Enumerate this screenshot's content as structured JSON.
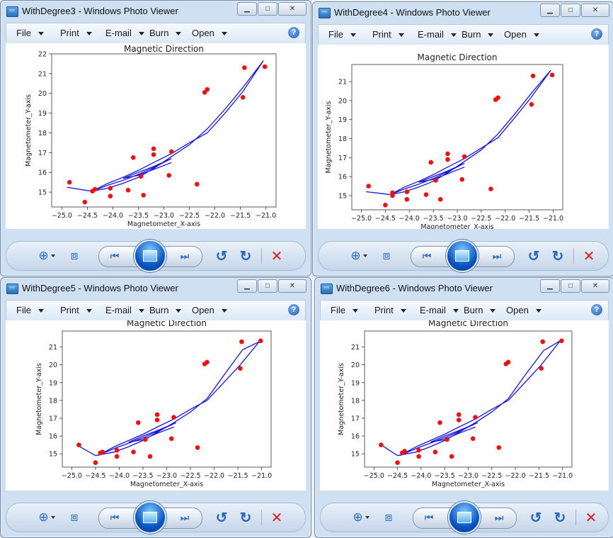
{
  "menu": {
    "file": "File",
    "print": "Print",
    "email": "E-mail",
    "burn": "Burn",
    "open": "Open"
  },
  "icons": {
    "app": "photo-viewer-icon",
    "help": "help-icon",
    "zoom": "zoom-icon",
    "fit": "actual-size-icon",
    "prev": "previous-icon",
    "slideshow": "slideshow-icon",
    "next": "next-icon",
    "rotate_ccw": "rotate-counterclockwise-icon",
    "rotate_cw": "rotate-clockwise-icon",
    "delete": "delete-icon"
  },
  "windows": [
    {
      "title": "WithDegree3 - Windows Photo Viewer",
      "chart_data": {
        "type": "scatter",
        "title": "Magnetic Direction",
        "xlabel": "Magnetometer_X-axis",
        "ylabel": "Magnetometer_Y-axis",
        "xlim": [
          -25.2,
          -20.8
        ],
        "ylim": [
          14.25,
          22
        ],
        "xticks": [
          -25.0,
          -24.5,
          -24.0,
          -23.5,
          -23.0,
          -22.5,
          -22.0,
          -21.5,
          -21.0
        ],
        "xtick_labels": [
          "−25.0",
          "−24.5",
          "−24.0",
          "−23.5",
          "−23.0",
          "−22.5",
          "−22.0",
          "−21.5",
          "−21.0"
        ],
        "yticks": [
          15,
          16,
          17,
          18,
          19,
          20,
          21,
          22
        ],
        "ytick_labels": [
          "15",
          "16",
          "17",
          "18",
          "19",
          "20",
          "21",
          "22"
        ],
        "points_x": [
          -24.85,
          -24.55,
          -24.4,
          -24.35,
          -24.05,
          -24.05,
          -23.7,
          -23.6,
          -23.45,
          -23.4,
          -23.2,
          -23.2,
          -22.9,
          -22.85,
          -22.35,
          -22.2,
          -22.15,
          -21.45,
          -21.42,
          -21.02
        ],
        "points_y": [
          15.5,
          14.5,
          15.05,
          15.15,
          14.8,
          15.2,
          15.1,
          16.75,
          15.8,
          14.85,
          16.9,
          17.2,
          15.85,
          17.05,
          15.4,
          20.05,
          20.2,
          19.8,
          21.3,
          21.35
        ],
        "fit_x": [
          -24.9,
          -24.55,
          -24.4,
          -24.1,
          -23.8,
          -23.5,
          -23.2,
          -22.85,
          -22.5,
          -22.15,
          -21.8,
          -21.45,
          -21.05,
          -21.45,
          -21.8,
          -22.15,
          -22.5,
          -22.85,
          -23.2,
          -23.5,
          -23.8,
          -24.1,
          -24.4,
          -24.1,
          -23.8,
          -23.5,
          -23.2,
          -22.85,
          -23.2,
          -23.5,
          -23.8,
          -23.5,
          -23.2,
          -22.85
        ],
        "fit_y": [
          15.25,
          15.1,
          15.05,
          15.2,
          15.45,
          15.75,
          16.2,
          16.8,
          17.4,
          18.2,
          19.2,
          20.3,
          21.65,
          20.1,
          19.0,
          18.0,
          17.5,
          16.95,
          16.5,
          16.1,
          15.75,
          15.45,
          15.05,
          15.35,
          15.6,
          15.9,
          16.25,
          16.7,
          16.3,
          16.0,
          15.7,
          15.85,
          16.15,
          16.5
        ]
      },
      "toolbar": ""
    },
    {
      "title": "WithDegree4 - Windows Photo Viewer",
      "chart_data": {
        "type": "scatter",
        "title": "Magnetic Direction",
        "xlabel": "Magnetometer_X-axis",
        "ylabel": "Magnetometer_Y-axis",
        "xlim": [
          -25.2,
          -20.8
        ],
        "ylim": [
          14.25,
          21.9
        ],
        "xticks": [
          -25.0,
          -24.5,
          -24.0,
          -23.5,
          -23.0,
          -22.5,
          -22.0,
          -21.5,
          -21.0
        ],
        "xtick_labels": [
          "−25.0",
          "−24.5",
          "−24.0",
          "−23.5",
          "−23.0",
          "−22.5",
          "−22.0",
          "−21.5",
          "−21.0"
        ],
        "yticks": [
          15,
          16,
          17,
          18,
          19,
          20,
          21
        ],
        "ytick_labels": [
          "15",
          "16",
          "17",
          "18",
          "19",
          "20",
          "21"
        ],
        "points_x": [
          -24.85,
          -24.5,
          -24.35,
          -24.35,
          -24.05,
          -24.05,
          -23.65,
          -23.55,
          -23.45,
          -23.35,
          -23.2,
          -23.2,
          -22.9,
          -22.85,
          -22.3,
          -22.2,
          -22.15,
          -21.45,
          -21.42,
          -21.02
        ],
        "points_y": [
          15.5,
          14.5,
          15.0,
          15.15,
          14.8,
          15.2,
          15.05,
          16.75,
          15.8,
          14.8,
          16.9,
          17.2,
          15.85,
          17.05,
          15.35,
          20.05,
          20.15,
          19.8,
          21.3,
          21.35
        ],
        "fit_x": [
          -24.9,
          -24.55,
          -24.4,
          -24.1,
          -23.8,
          -23.5,
          -23.2,
          -22.85,
          -22.5,
          -22.15,
          -21.8,
          -21.45,
          -21.05,
          -21.45,
          -21.8,
          -22.15,
          -22.5,
          -22.85,
          -23.2,
          -23.5,
          -23.8,
          -24.1,
          -24.4,
          -24.1,
          -23.8,
          -23.5,
          -23.2,
          -22.85,
          -23.2,
          -23.5,
          -23.8,
          -23.5,
          -23.2,
          -22.85
        ],
        "fit_y": [
          15.2,
          15.1,
          15.05,
          15.2,
          15.45,
          15.75,
          16.2,
          16.8,
          17.4,
          18.25,
          19.3,
          20.4,
          21.6,
          20.2,
          19.1,
          18.05,
          17.5,
          16.95,
          16.5,
          16.1,
          15.75,
          15.45,
          15.05,
          15.35,
          15.6,
          15.9,
          16.25,
          16.7,
          16.3,
          16.0,
          15.7,
          15.85,
          16.15,
          16.5
        ]
      },
      "toolbar": ""
    },
    {
      "title": "WithDegree5 - Windows Photo Viewer",
      "chart_data": {
        "type": "scatter",
        "title": "Magnetic Direction",
        "xlabel": "Magnetometer_X-axis",
        "ylabel": "Magnetometer_Y-axis",
        "xlim": [
          -25.2,
          -20.8
        ],
        "ylim": [
          14.25,
          21.9
        ],
        "xticks": [
          -25.0,
          -24.5,
          -24.0,
          -23.5,
          -23.0,
          -22.5,
          -22.0,
          -21.5,
          -21.0
        ],
        "xtick_labels": [
          "−25.0",
          "−24.5",
          "−24.0",
          "−23.5",
          "−23.0",
          "−22.5",
          "−22.0",
          "−21.5",
          "−21.0"
        ],
        "yticks": [
          15,
          16,
          17,
          18,
          19,
          20,
          21
        ],
        "ytick_labels": [
          "15",
          "16",
          "17",
          "18",
          "19",
          "20",
          "21"
        ],
        "points_x": [
          -24.85,
          -24.5,
          -24.4,
          -24.35,
          -24.05,
          -24.05,
          -23.7,
          -23.6,
          -23.45,
          -23.35,
          -23.2,
          -23.2,
          -22.9,
          -22.85,
          -22.35,
          -22.2,
          -22.15,
          -21.45,
          -21.42,
          -21.02
        ],
        "points_y": [
          15.5,
          14.5,
          15.05,
          15.1,
          14.85,
          15.2,
          15.1,
          16.75,
          15.8,
          14.85,
          16.9,
          17.2,
          15.85,
          17.05,
          15.35,
          20.05,
          20.15,
          19.8,
          21.3,
          21.35
        ],
        "fit_x": [
          -24.9,
          -24.5,
          -24.1,
          -23.8,
          -23.5,
          -23.2,
          -22.85,
          -22.5,
          -22.15,
          -21.8,
          -21.4,
          -21.05,
          -21.45,
          -21.8,
          -22.15,
          -22.5,
          -22.85,
          -23.2,
          -23.5,
          -23.8,
          -24.1,
          -24.45,
          -24.1,
          -23.8,
          -23.5,
          -23.2,
          -22.8,
          -23.2,
          -23.5,
          -23.8,
          -23.5,
          -23.2,
          -22.85
        ],
        "fit_y": [
          15.5,
          14.9,
          15.1,
          15.4,
          15.75,
          16.2,
          16.75,
          17.35,
          18.1,
          19.4,
          20.85,
          21.3,
          20.0,
          19.0,
          18.0,
          17.5,
          16.95,
          16.5,
          16.1,
          15.75,
          15.4,
          14.9,
          15.3,
          15.6,
          15.9,
          16.25,
          16.75,
          16.3,
          16.0,
          15.65,
          15.8,
          16.15,
          16.5
        ]
      },
      "toolbar": ""
    },
    {
      "title": "WithDegree6 - Windows Photo Viewer",
      "chart_data": {
        "type": "scatter",
        "title": "Magnetic Direction",
        "xlabel": "Magnetometer_X-axis",
        "ylabel": "Magnetometer_Y-axis",
        "xlim": [
          -25.2,
          -20.8
        ],
        "ylim": [
          14.25,
          21.9
        ],
        "xticks": [
          -25.0,
          -24.5,
          -24.0,
          -23.5,
          -23.0,
          -22.5,
          -22.0,
          -21.5,
          -21.0
        ],
        "xtick_labels": [
          "−25.0",
          "−24.5",
          "−24.0",
          "−23.5",
          "−23.0",
          "−22.5",
          "−22.0",
          "−21.5",
          "−21.0"
        ],
        "yticks": [
          15,
          16,
          17,
          18,
          19,
          20,
          21
        ],
        "ytick_labels": [
          "15",
          "16",
          "17",
          "18",
          "19",
          "20",
          "21"
        ],
        "points_x": [
          -24.85,
          -24.5,
          -24.4,
          -24.35,
          -24.05,
          -24.05,
          -23.7,
          -23.6,
          -23.45,
          -23.35,
          -23.2,
          -23.2,
          -22.9,
          -22.85,
          -22.35,
          -22.2,
          -22.15,
          -21.45,
          -21.42,
          -21.02
        ],
        "points_y": [
          15.5,
          14.5,
          15.05,
          15.15,
          14.85,
          15.2,
          15.1,
          16.75,
          15.8,
          14.85,
          16.9,
          17.2,
          15.85,
          17.05,
          15.35,
          20.05,
          20.15,
          19.8,
          21.3,
          21.35
        ],
        "fit_x": [
          -24.85,
          -24.5,
          -24.1,
          -23.8,
          -23.5,
          -23.2,
          -22.85,
          -22.5,
          -22.15,
          -21.8,
          -21.4,
          -21.05,
          -21.45,
          -21.8,
          -22.15,
          -22.5,
          -22.85,
          -23.2,
          -23.5,
          -23.8,
          -24.1,
          -24.45,
          -24.1,
          -23.8,
          -23.5,
          -23.2,
          -22.8,
          -23.2,
          -23.5,
          -23.8,
          -23.5,
          -23.2,
          -22.85
        ],
        "fit_y": [
          15.5,
          14.9,
          15.1,
          15.4,
          15.75,
          16.2,
          16.75,
          17.35,
          18.1,
          19.4,
          20.8,
          21.35,
          20.0,
          19.0,
          18.0,
          17.5,
          16.95,
          16.5,
          16.1,
          15.75,
          15.4,
          14.9,
          15.3,
          15.6,
          15.9,
          16.25,
          16.75,
          16.3,
          16.0,
          15.65,
          15.8,
          16.15,
          16.5
        ]
      },
      "toolbar": ""
    }
  ]
}
